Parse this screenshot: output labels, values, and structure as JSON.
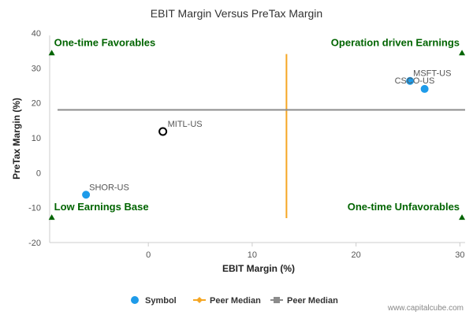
{
  "chart_data": {
    "type": "scatter",
    "title": "EBIT Margin Versus PreTax Margin",
    "xlabel": "EBIT Margin (%)",
    "ylabel": "PreTax Margin (%)",
    "xlim": [
      -9.5,
      30.5
    ],
    "ylim": [
      -20,
      40
    ],
    "xticks": [
      0,
      10,
      20,
      30
    ],
    "yticks": [
      -20,
      -10,
      0,
      10,
      20,
      30,
      40
    ],
    "points": [
      {
        "label": "MSFT-US",
        "x": 25.2,
        "y": 26.3,
        "style": "filled"
      },
      {
        "label": "CSCO-US",
        "x": 26.6,
        "y": 24.0,
        "style": "filled"
      },
      {
        "label": "MITL-US",
        "x": 1.4,
        "y": 11.8,
        "style": "hollow"
      },
      {
        "label": "SHOR-US",
        "x": -6.0,
        "y": -6.3,
        "style": "filled"
      }
    ],
    "peer_median_x": 13.3,
    "peer_median_x_range": [
      -13,
      34
    ],
    "peer_median_y": 18.0,
    "quadrants": [
      {
        "label": "One-time Favorables",
        "corner": "top-left"
      },
      {
        "label": "Operation driven Earnings",
        "corner": "top-right"
      },
      {
        "label": "Low Earnings Base",
        "corner": "bottom-left"
      },
      {
        "label": "One-time Unfavorables",
        "corner": "bottom-right"
      }
    ],
    "legend": [
      {
        "label": "Symbol",
        "kind": "dot"
      },
      {
        "label": "Peer Median",
        "kind": "diamond-line"
      },
      {
        "label": "Peer Median",
        "kind": "square-line"
      }
    ],
    "legend_position": "bottom",
    "grid": false
  },
  "colors": {
    "point": "#1e9be9",
    "vline": "#f5a623",
    "hline": "#8c8c8c",
    "quad_text": "#006400",
    "axis": "#cccccc"
  },
  "credit": "www.capitalcube.com"
}
